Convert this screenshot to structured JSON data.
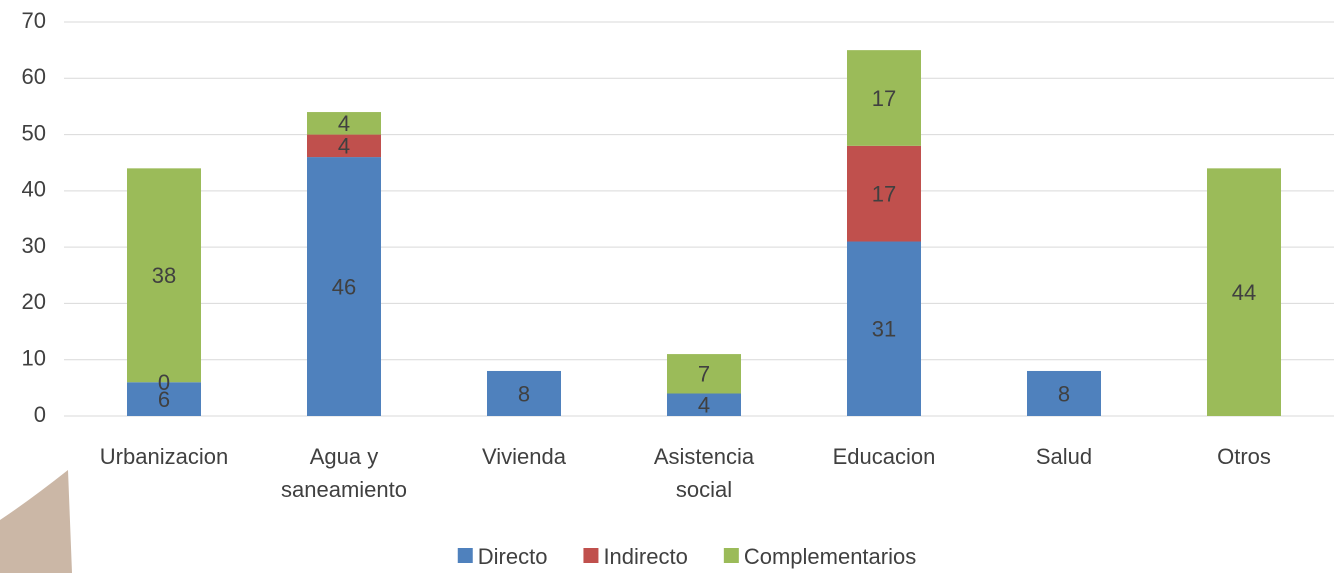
{
  "chart_data": {
    "type": "bar",
    "stacked": true,
    "categories": [
      "Urbanizacion",
      "Agua y saneamiento",
      "Vivienda",
      "Asistencia social",
      "Educacion",
      "Salud",
      "Otros"
    ],
    "series": [
      {
        "name": "Directo",
        "color": "#4f81bd",
        "values": [
          6,
          46,
          8,
          4,
          31,
          8,
          null
        ]
      },
      {
        "name": "Indirecto",
        "color": "#c0504d",
        "values": [
          0,
          4,
          null,
          null,
          17,
          null,
          null
        ]
      },
      {
        "name": "Complementarios",
        "color": "#9bbb59",
        "values": [
          38,
          4,
          null,
          7,
          17,
          null,
          44
        ]
      }
    ],
    "ylim": [
      0,
      70
    ],
    "yticks": [
      0,
      10,
      20,
      30,
      40,
      50,
      60,
      70
    ],
    "grid": true,
    "legend": "bottom"
  }
}
